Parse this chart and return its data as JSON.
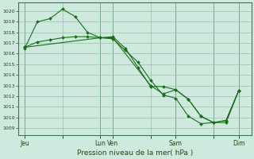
{
  "background_color": "#ceeade",
  "grid_color": "#9abfaa",
  "line_color": "#1a6e1a",
  "marker_color": "#1a6e1a",
  "xlabel_text": "Pression niveau de la mer( hPa )",
  "ylim": [
    1008.3,
    1020.8
  ],
  "yticks": [
    1009,
    1010,
    1011,
    1012,
    1013,
    1014,
    1015,
    1016,
    1017,
    1018,
    1019,
    1020
  ],
  "xtick_labels": [
    "Jeu",
    "",
    "Lun",
    "Ven",
    "",
    "Sam",
    "",
    "Dim"
  ],
  "xtick_positions": [
    0,
    3,
    6,
    7,
    10,
    12,
    15,
    17
  ],
  "xlim": [
    -0.5,
    18.0
  ],
  "vlines": [
    0,
    6,
    7,
    12,
    15,
    17
  ],
  "line1": {
    "x": [
      0,
      1,
      2,
      3,
      4,
      5,
      6,
      7,
      8,
      9,
      10,
      11,
      12,
      13,
      14,
      15,
      16,
      17
    ],
    "y": [
      1016.5,
      1019.0,
      1019.3,
      1020.2,
      1019.5,
      1018.0,
      1017.5,
      1017.6,
      1016.5,
      1014.7,
      1012.9,
      1012.9,
      1012.6,
      1011.7,
      1010.1,
      1009.5,
      1009.5,
      1012.5
    ]
  },
  "line2": {
    "x": [
      0,
      1,
      2,
      3,
      4,
      5,
      6,
      7,
      8,
      9,
      10,
      11,
      12,
      13,
      14,
      15,
      16,
      17
    ],
    "y": [
      1016.6,
      1017.1,
      1017.3,
      1017.5,
      1017.6,
      1017.6,
      1017.5,
      1017.4,
      1016.3,
      1015.2,
      1013.5,
      1012.1,
      1011.8,
      1010.1,
      1009.4,
      1009.5,
      1009.7,
      1012.5
    ]
  },
  "line3": {
    "x": [
      0,
      6,
      7,
      10,
      11,
      12,
      13,
      14,
      15,
      16,
      17
    ],
    "y": [
      1016.6,
      1017.5,
      1017.5,
      1013.0,
      1012.2,
      1012.6,
      1011.7,
      1010.1,
      1009.5,
      1009.7,
      1012.5
    ]
  }
}
